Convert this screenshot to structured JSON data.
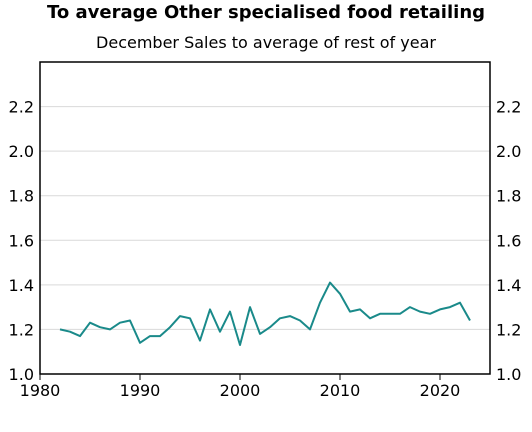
{
  "chart_data": {
    "type": "line",
    "title": "To average Other specialised food retailing",
    "subtitle": "December Sales to average of rest of year",
    "xlabel": "",
    "ylabel": "",
    "xlim": [
      1980,
      2025
    ],
    "ylim": [
      1.0,
      2.4
    ],
    "x_ticks": [
      1980,
      1990,
      2000,
      2010,
      2020
    ],
    "y_ticks": [
      1.0,
      1.2,
      1.4,
      1.6,
      1.8,
      2.0,
      2.2
    ],
    "y_tick_labels": [
      "1.0",
      "1.2",
      "1.4",
      "1.6",
      "1.8",
      "2.0",
      "2.2"
    ],
    "grid": "horizontal",
    "line_color": "#1a8a8a",
    "series": [
      {
        "x": [
          1982,
          1983,
          1984,
          1985,
          1986,
          1987,
          1988,
          1989,
          1990,
          1991,
          1992,
          1993,
          1994,
          1995,
          1996,
          1997,
          1998,
          1999,
          2000,
          2001,
          2002,
          2003,
          2004,
          2005,
          2006,
          2007,
          2008,
          2009,
          2010,
          2011,
          2012,
          2013,
          2014,
          2015,
          2016,
          2017,
          2018,
          2019,
          2020,
          2021,
          2022,
          2023
        ],
        "values": [
          1.2,
          1.19,
          1.17,
          1.23,
          1.21,
          1.2,
          1.23,
          1.24,
          1.14,
          1.17,
          1.17,
          1.21,
          1.26,
          1.25,
          1.15,
          1.29,
          1.19,
          1.28,
          1.13,
          1.3,
          1.18,
          1.21,
          1.25,
          1.26,
          1.24,
          1.2,
          1.32,
          1.41,
          1.36,
          1.28,
          1.29,
          1.25,
          1.27,
          1.27,
          1.27,
          1.3,
          1.28,
          1.27,
          1.29,
          1.3,
          1.32,
          1.24
        ]
      }
    ]
  }
}
